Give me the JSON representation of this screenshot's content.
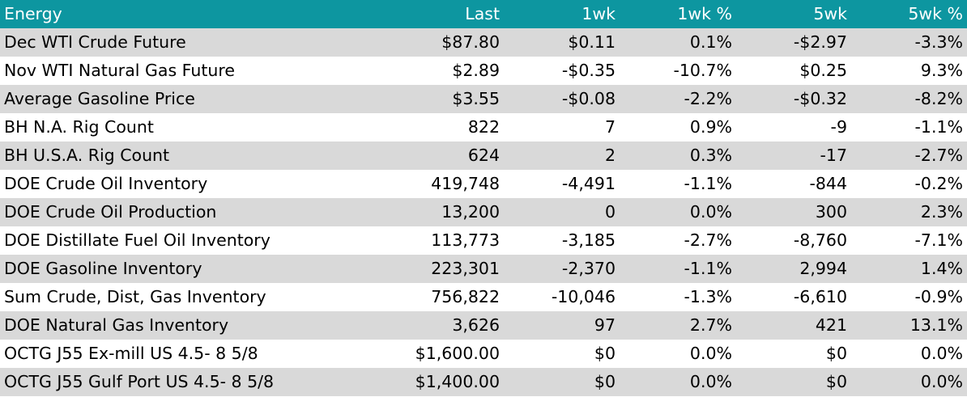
{
  "table": {
    "headers": {
      "name": "Energy",
      "last": "Last",
      "wk1": "1wk",
      "wk1_pct": "1wk %",
      "wk5": "5wk",
      "wk5_pct": "5wk %"
    },
    "colors": {
      "header_bg": "#0d96a0",
      "row_shade": "#d9d9d9",
      "positive": "#4e6b29",
      "negative": "#c00000"
    },
    "rows": [
      {
        "name": "Dec WTI Crude Future",
        "last": "$87.80",
        "wk1": "$0.11",
        "wk1_pct": "0.1%",
        "wk5": "-$2.97",
        "wk5_pct": "-3.3%"
      },
      {
        "name": "Nov WTI Natural Gas Future",
        "last": "$2.89",
        "wk1": "-$0.35",
        "wk1_pct": "-10.7%",
        "wk5": "$0.25",
        "wk5_pct": "9.3%"
      },
      {
        "name": "Average Gasoline Price",
        "last": "$3.55",
        "wk1": "-$0.08",
        "wk1_pct": "-2.2%",
        "wk5": "-$0.32",
        "wk5_pct": "-8.2%"
      },
      {
        "name": "BH N.A. Rig Count",
        "last": "822",
        "wk1": "7",
        "wk1_pct": "0.9%",
        "wk5": "-9",
        "wk5_pct": "-1.1%"
      },
      {
        "name": "BH U.S.A. Rig Count",
        "last": "624",
        "wk1": "2",
        "wk1_pct": "0.3%",
        "wk5": "-17",
        "wk5_pct": "-2.7%"
      },
      {
        "name": "DOE Crude Oil Inventory",
        "last": "419,748",
        "wk1": "-4,491",
        "wk1_pct": "-1.1%",
        "wk5": "-844",
        "wk5_pct": "-0.2%"
      },
      {
        "name": "DOE Crude Oil Production",
        "last": "13,200",
        "wk1": "0",
        "wk1_pct": "0.0%",
        "wk5": "300",
        "wk5_pct": "2.3%"
      },
      {
        "name": "DOE Distillate Fuel Oil Inventory",
        "last": "113,773",
        "wk1": "-3,185",
        "wk1_pct": "-2.7%",
        "wk5": "-8,760",
        "wk5_pct": "-7.1%"
      },
      {
        "name": "DOE Gasoline Inventory",
        "last": "223,301",
        "wk1": "-2,370",
        "wk1_pct": "-1.1%",
        "wk5": "2,994",
        "wk5_pct": "1.4%"
      },
      {
        "name": "Sum Crude, Dist, Gas Inventory",
        "last": "756,822",
        "wk1": "-10,046",
        "wk1_pct": "-1.3%",
        "wk5": "-6,610",
        "wk5_pct": "-0.9%"
      },
      {
        "name": "DOE Natural Gas Inventory",
        "last": "3,626",
        "wk1": "97",
        "wk1_pct": "2.7%",
        "wk5": "421",
        "wk5_pct": "13.1%"
      },
      {
        "name": "OCTG J55 Ex-mill US 4.5- 8 5/8",
        "last": "$1,600.00",
        "wk1": "$0",
        "wk1_pct": "0.0%",
        "wk5": "$0",
        "wk5_pct": "0.0%"
      },
      {
        "name": "OCTG J55 Gulf Port US 4.5- 8 5/8",
        "last": "$1,400.00",
        "wk1": "$0",
        "wk1_pct": "0.0%",
        "wk5": "$0",
        "wk5_pct": "0.0%"
      }
    ]
  }
}
